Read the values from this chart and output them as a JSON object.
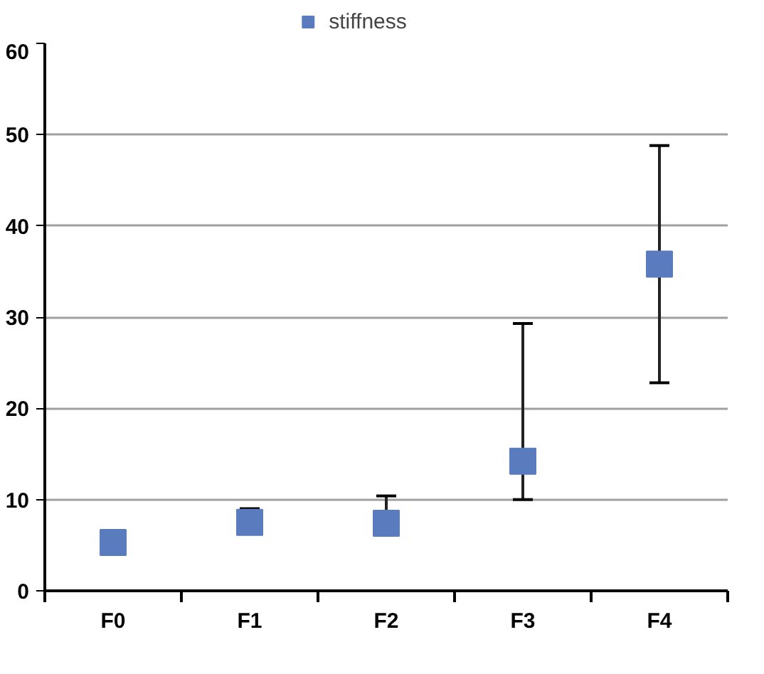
{
  "chart_data": {
    "type": "scatter",
    "categories": [
      "F0",
      "F1",
      "F2",
      "F3",
      "F4"
    ],
    "series": [
      {
        "name": "stiffness",
        "color": "#5b7bbf",
        "values": [
          5.3,
          7.5,
          7.4,
          14.2,
          35.8
        ],
        "errors": [
          null,
          [
            6.5,
            9.0
          ],
          [
            6.3,
            10.4
          ],
          [
            10.0,
            29.3
          ],
          [
            22.8,
            48.8
          ]
        ]
      }
    ],
    "ylim": [
      0,
      60
    ],
    "yticks": [
      0,
      10,
      20,
      30,
      40,
      50,
      60
    ],
    "grid": "y",
    "legend": "top",
    "marker": "square"
  }
}
